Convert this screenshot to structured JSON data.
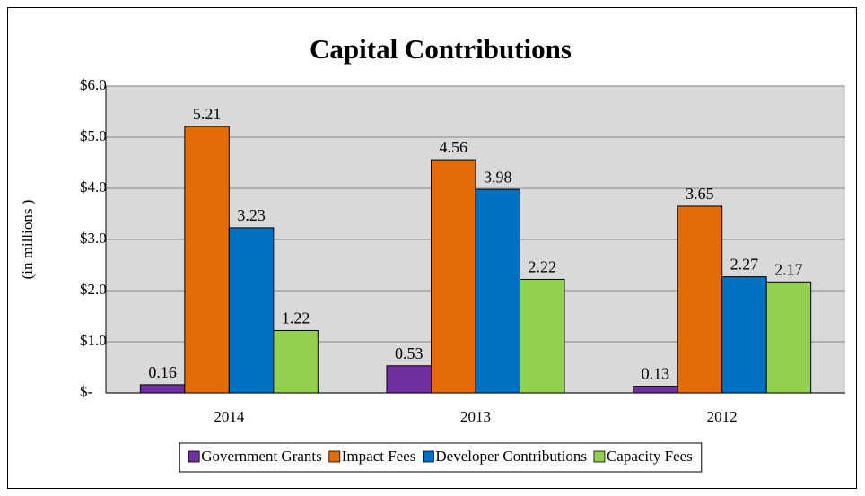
{
  "chart_data": {
    "type": "bar",
    "title": "Capital Contributions",
    "y_label": "(in millions )",
    "categories": [
      "2014",
      "2013",
      "2012"
    ],
    "series": [
      {
        "name": "Government Grants",
        "color": "#7030a0",
        "values": [
          0.16,
          0.53,
          0.13
        ]
      },
      {
        "name": "Impact Fees",
        "color": "#e36c09",
        "values": [
          5.21,
          4.56,
          3.65
        ]
      },
      {
        "name": "Developer Contributions",
        "color": "#0070c0",
        "values": [
          3.23,
          3.98,
          2.27
        ]
      },
      {
        "name": "Capacity Fees",
        "color": "#92d050",
        "values": [
          1.22,
          2.22,
          2.17
        ]
      }
    ],
    "ylim": [
      0,
      6
    ],
    "yticks": [
      {
        "value": 0,
        "label": "$-"
      },
      {
        "value": 1,
        "label": "$1.0"
      },
      {
        "value": 2,
        "label": "$2.0"
      },
      {
        "value": 3,
        "label": "$3.0"
      },
      {
        "value": 4,
        "label": "$4.0"
      },
      {
        "value": 5,
        "label": "$5.0"
      },
      {
        "value": 6,
        "label": "$6.0"
      }
    ],
    "grid": true,
    "legend": "bottom"
  }
}
